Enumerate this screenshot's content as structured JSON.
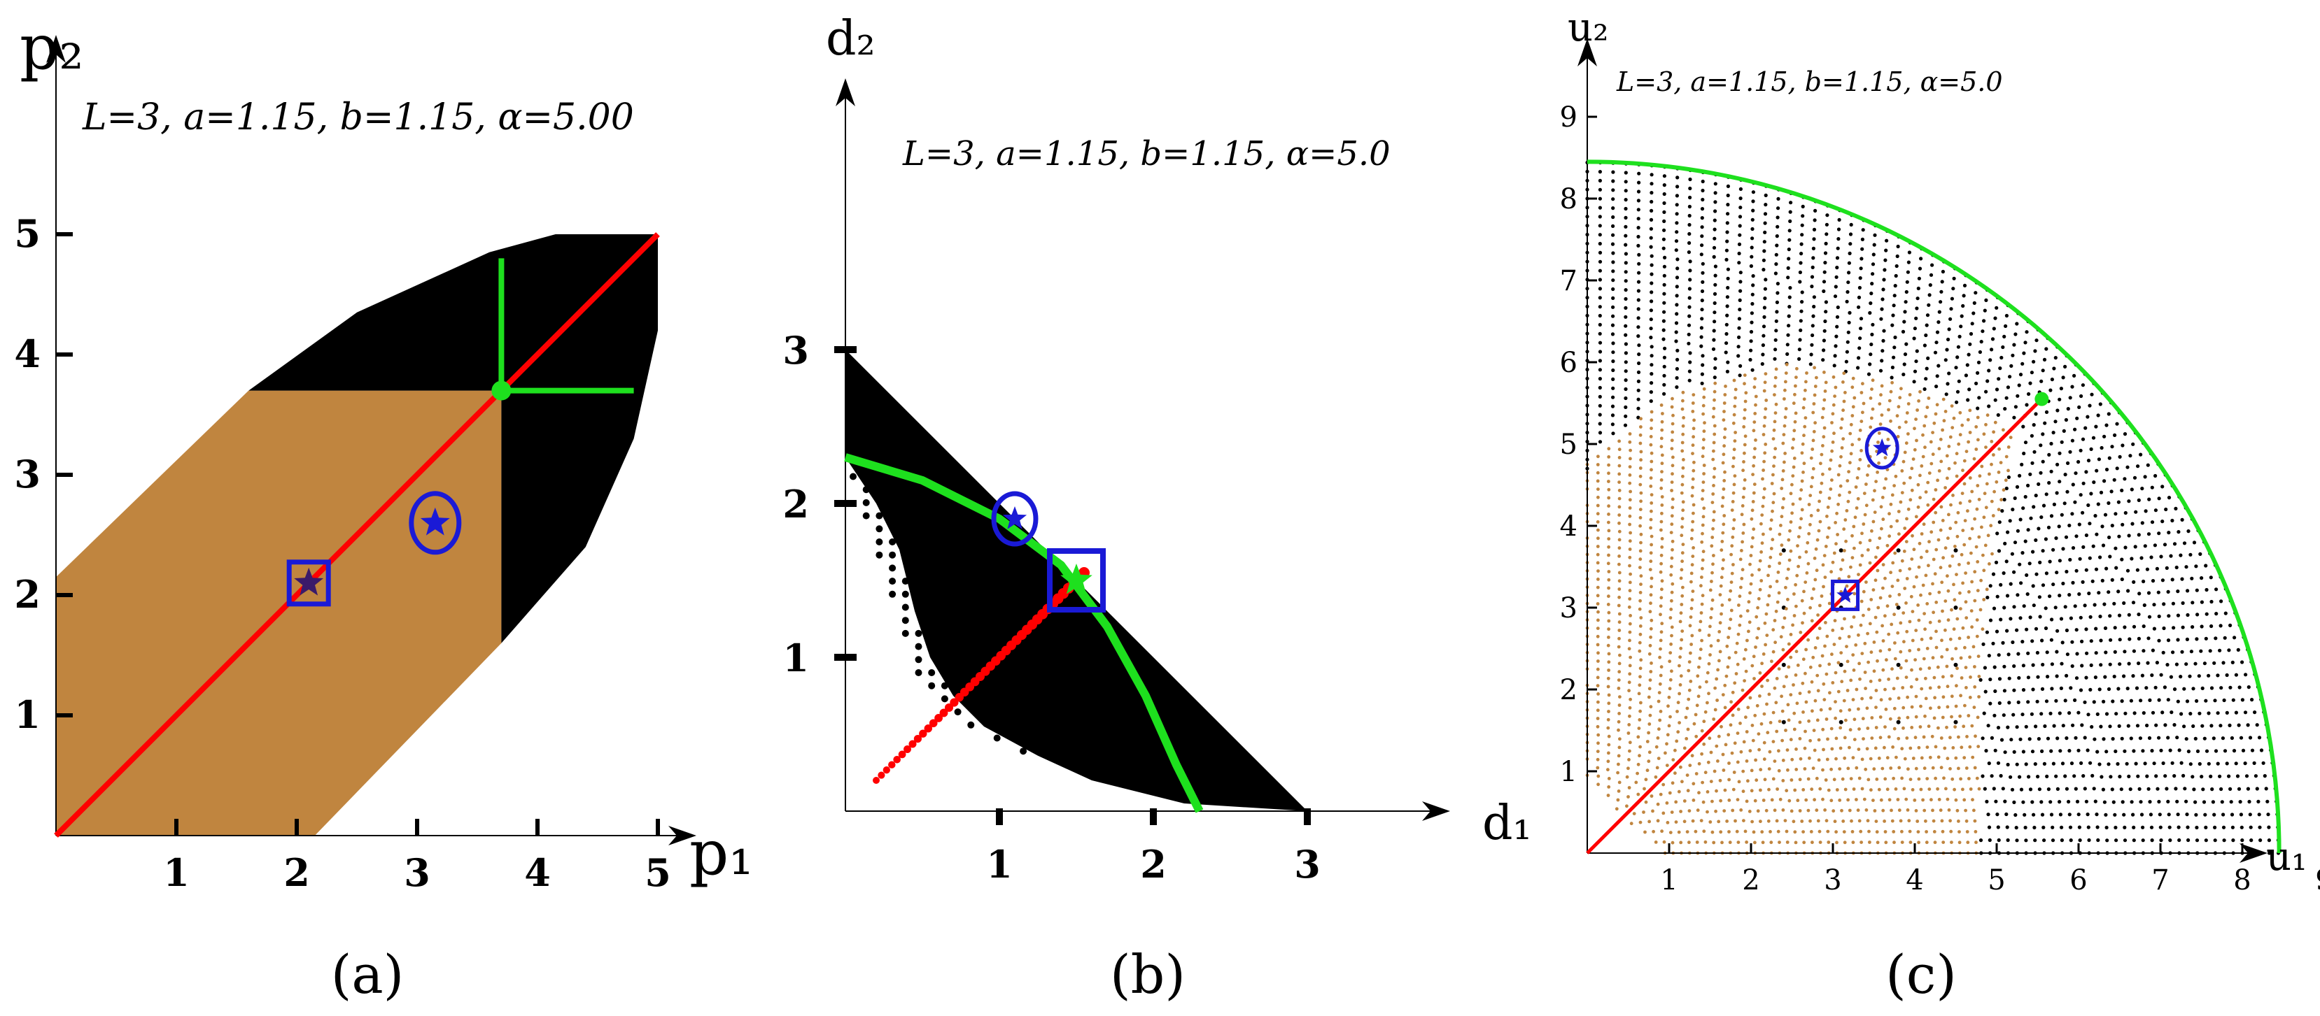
{
  "chart_data": [
    {
      "type": "scatter",
      "panel": "(a)",
      "caption": "(a)",
      "params": "L=3, a=1.15, b=1.15, α=5.00",
      "xlabel": "p₁",
      "ylabel": "p₂",
      "xlim": [
        0,
        6.5
      ],
      "ylim": [
        0,
        6.3
      ],
      "xticks": [
        1,
        2,
        3,
        4,
        5
      ],
      "yticks": [
        1,
        2,
        3,
        4,
        5
      ],
      "colors": {
        "brown_region": "#c0853f",
        "black_region": "#000000",
        "red_line": "#ff0000",
        "green": "#1ee01e",
        "marker": "#1a1ad6"
      },
      "brown_region": [
        [
          0,
          0
        ],
        [
          2.15,
          0
        ],
        [
          3.7,
          1.6
        ],
        [
          3.7,
          3.7
        ],
        [
          1.6,
          3.7
        ],
        [
          0,
          2.15
        ]
      ],
      "black_region": [
        [
          1.6,
          3.7
        ],
        [
          2.5,
          4.35
        ],
        [
          3.6,
          4.85
        ],
        [
          4.15,
          5.0
        ],
        [
          5.0,
          5.0
        ],
        [
          5.0,
          4.2
        ],
        [
          4.8,
          3.3
        ],
        [
          4.4,
          2.4
        ],
        [
          3.7,
          1.6
        ],
        [
          3.7,
          3.7
        ]
      ],
      "red_line": [
        [
          0,
          0
        ],
        [
          5,
          5
        ]
      ],
      "green_lines": [
        [
          [
            3.7,
            3.7
          ],
          [
            3.7,
            4.8
          ]
        ],
        [
          [
            3.7,
            3.7
          ],
          [
            4.8,
            3.7
          ]
        ]
      ],
      "green_point": [
        3.7,
        3.7
      ],
      "star_circle": [
        3.15,
        2.6
      ],
      "star_square": [
        2.1,
        2.1
      ]
    },
    {
      "type": "scatter",
      "panel": "(b)",
      "caption": "(b)",
      "params": "L=3, a=1.15, b=1.15, α=5.0",
      "xlabel": "d₁",
      "ylabel": "d₂",
      "xlim": [
        0,
        3.4
      ],
      "ylim": [
        0,
        3.5
      ],
      "xticks": [
        1,
        2,
        3
      ],
      "yticks": [
        1,
        2,
        3
      ],
      "colors": {
        "black_points": "#000000",
        "red_points": "#ff0000",
        "green_curve": "#1ee01e",
        "marker": "#1a1ad6"
      },
      "black_region": [
        [
          0,
          3.0
        ],
        [
          0,
          2.3
        ],
        [
          0.2,
          1.85
        ],
        [
          0.35,
          1.2
        ],
        [
          0.5,
          0.8
        ],
        [
          0.75,
          0.55
        ],
        [
          1.1,
          0.4
        ],
        [
          1.6,
          0.2
        ],
        [
          2.2,
          0.05
        ],
        [
          3.0,
          0.0
        ]
      ],
      "red_points": [
        [
          0.2,
          0.2
        ],
        [
          1.55,
          1.55
        ]
      ],
      "green_curve": [
        [
          0.0,
          2.3
        ],
        [
          0.5,
          2.15
        ],
        [
          1.0,
          1.9
        ],
        [
          1.4,
          1.6
        ],
        [
          1.7,
          1.2
        ],
        [
          1.95,
          0.75
        ],
        [
          2.15,
          0.3
        ],
        [
          2.3,
          0.0
        ]
      ],
      "star_circle": [
        1.1,
        1.9
      ],
      "star_square": [
        1.5,
        1.5
      ]
    },
    {
      "type": "scatter",
      "panel": "(c)",
      "caption": "(c)",
      "params": "L=3, a=1.15, b=1.15, α=5.0",
      "xlabel": "u₁",
      "ylabel": "u₂",
      "xlim": [
        0,
        10.2
      ],
      "ylim": [
        0,
        9.8
      ],
      "xticks": [
        1,
        2,
        3,
        4,
        5,
        6,
        7,
        8,
        9
      ],
      "yticks": [
        1,
        2,
        3,
        4,
        5,
        6,
        7,
        8,
        9
      ],
      "colors": {
        "black_points": "#000000",
        "brown_points": "#c0853f",
        "red_line": "#ff0000",
        "green_curve": "#1ee01e",
        "marker": "#1a1ad6"
      },
      "outer_radius": 8.45,
      "brown_region": [
        [
          0,
          0.0
        ],
        [
          0,
          4.8
        ],
        [
          1.0,
          5.6
        ],
        [
          2.5,
          6.0
        ],
        [
          4.0,
          5.7
        ],
        [
          5.3,
          5.2
        ],
        [
          5.0,
          4.0
        ],
        [
          4.8,
          2.5
        ],
        [
          4.8,
          0.0
        ],
        [
          0.9,
          0.0
        ],
        [
          0.0,
          0.9
        ]
      ],
      "red_line": [
        [
          0,
          0
        ],
        [
          5.55,
          5.55
        ]
      ],
      "green_point": [
        5.55,
        5.55
      ],
      "star_circle": [
        3.6,
        4.95
      ],
      "star_square": [
        3.15,
        3.15
      ]
    }
  ]
}
